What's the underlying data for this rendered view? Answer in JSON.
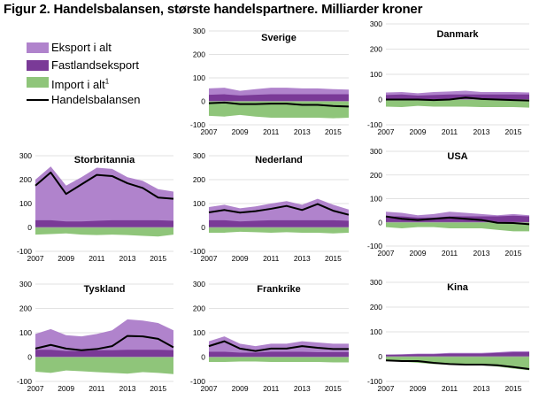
{
  "title": "Figur 2. Handelsbalansen, største handelspartnere. Milliarder kroner",
  "legend": [
    {
      "label": "Eksport i alt",
      "color": "#b083cc",
      "kind": "area"
    },
    {
      "label": "Fastlandseksport",
      "color": "#7a3a97",
      "kind": "area"
    },
    {
      "label": "Import i alt",
      "sup": "1",
      "color": "#8fc57a",
      "kind": "area"
    },
    {
      "label": "Handelsbalansen",
      "color": "#000000",
      "kind": "line"
    }
  ],
  "colors": {
    "export": "#b083cc",
    "mainland": "#7a3a97",
    "import": "#8fc57a",
    "balance": "#000000"
  },
  "chart_data": [
    {
      "type": "area",
      "title": "Sverige",
      "x": [
        2007,
        2008,
        2009,
        2010,
        2011,
        2012,
        2013,
        2014,
        2015,
        2016
      ],
      "series": [
        {
          "name": "Eksport i alt",
          "values": [
            55,
            58,
            45,
            52,
            58,
            58,
            55,
            55,
            52,
            50
          ]
        },
        {
          "name": "Fastlandseksport",
          "values": [
            28,
            30,
            25,
            28,
            30,
            30,
            30,
            30,
            30,
            30
          ]
        },
        {
          "name": "Import i alt",
          "values": [
            -62,
            -65,
            -58,
            -65,
            -70,
            -70,
            -70,
            -70,
            -72,
            -70
          ]
        },
        {
          "name": "Handelsbalansen",
          "values": [
            -8,
            -5,
            -12,
            -12,
            -10,
            -10,
            -15,
            -15,
            -20,
            -22
          ]
        }
      ],
      "xticks": [
        "2007",
        "2009",
        "2011",
        "2013",
        "2015"
      ],
      "ylim": [
        -100,
        300
      ],
      "yticks": [
        -100,
        0,
        100,
        200,
        300
      ]
    },
    {
      "type": "area",
      "title": "Danmark",
      "x": [
        2007,
        2008,
        2009,
        2010,
        2011,
        2012,
        2013,
        2014,
        2015,
        2016
      ],
      "series": [
        {
          "name": "Eksport i alt",
          "values": [
            28,
            30,
            25,
            30,
            32,
            35,
            30,
            30,
            30,
            28
          ]
        },
        {
          "name": "Fastlandseksport",
          "values": [
            18,
            20,
            16,
            18,
            20,
            20,
            20,
            20,
            20,
            20
          ]
        },
        {
          "name": "Import i alt",
          "values": [
            -28,
            -30,
            -25,
            -28,
            -28,
            -28,
            -30,
            -30,
            -30,
            -32
          ]
        },
        {
          "name": "Handelsbalansen",
          "values": [
            0,
            0,
            0,
            -2,
            0,
            8,
            2,
            0,
            -2,
            -4
          ]
        }
      ],
      "xticks": [
        "2007",
        "2009",
        "2011",
        "2013",
        "2015"
      ],
      "ylim": [
        -100,
        300
      ],
      "yticks": [
        -100,
        0,
        100,
        200,
        300
      ]
    },
    {
      "type": "area",
      "title": "Storbritannia",
      "x": [
        2007,
        2008,
        2009,
        2010,
        2011,
        2012,
        2013,
        2014,
        2015,
        2016
      ],
      "series": [
        {
          "name": "Eksport i alt",
          "values": [
            200,
            255,
            175,
            210,
            250,
            245,
            210,
            195,
            160,
            150
          ]
        },
        {
          "name": "Fastlandseksport",
          "values": [
            30,
            30,
            25,
            25,
            28,
            30,
            30,
            30,
            30,
            28
          ]
        },
        {
          "name": "Import i alt",
          "values": [
            -30,
            -28,
            -25,
            -30,
            -32,
            -30,
            -32,
            -35,
            -38,
            -30
          ]
        },
        {
          "name": "Handelsbalansen",
          "values": [
            175,
            230,
            140,
            180,
            220,
            215,
            185,
            165,
            125,
            120
          ]
        }
      ],
      "xticks": [
        "2007",
        "2009",
        "2011",
        "2013",
        "2015"
      ],
      "ylim": [
        -100,
        300
      ],
      "yticks": [
        -100,
        0,
        100,
        200,
        300
      ]
    },
    {
      "type": "area",
      "title": "Nederland",
      "x": [
        2007,
        2008,
        2009,
        2010,
        2011,
        2012,
        2013,
        2014,
        2015,
        2016
      ],
      "series": [
        {
          "name": "Eksport i alt",
          "values": [
            85,
            95,
            80,
            88,
            100,
            110,
            95,
            120,
            95,
            75
          ]
        },
        {
          "name": "Fastlandseksport",
          "values": [
            30,
            30,
            25,
            28,
            30,
            30,
            30,
            30,
            30,
            28
          ]
        },
        {
          "name": "Import i alt",
          "values": [
            -22,
            -22,
            -18,
            -20,
            -22,
            -20,
            -22,
            -22,
            -25,
            -22
          ]
        },
        {
          "name": "Handelsbalansen",
          "values": [
            63,
            73,
            62,
            68,
            78,
            90,
            73,
            98,
            70,
            53
          ]
        }
      ],
      "xticks": [
        "2007",
        "2009",
        "2011",
        "2013",
        "2015"
      ],
      "ylim": [
        -100,
        300
      ],
      "yticks": [
        -100,
        0,
        100,
        200,
        300
      ]
    },
    {
      "type": "area",
      "title": "USA",
      "x": [
        2007,
        2008,
        2009,
        2010,
        2011,
        2012,
        2013,
        2014,
        2015,
        2016
      ],
      "series": [
        {
          "name": "Eksport i alt",
          "values": [
            45,
            40,
            30,
            35,
            45,
            40,
            35,
            30,
            35,
            30
          ]
        },
        {
          "name": "Fastlandseksport",
          "values": [
            25,
            25,
            20,
            20,
            25,
            25,
            25,
            25,
            28,
            25
          ]
        },
        {
          "name": "Import i alt",
          "values": [
            -20,
            -25,
            -20,
            -20,
            -25,
            -25,
            -25,
            -32,
            -38,
            -38
          ]
        },
        {
          "name": "Handelsbalansen",
          "values": [
            25,
            15,
            10,
            15,
            20,
            15,
            10,
            -2,
            -3,
            -8
          ]
        }
      ],
      "xticks": [
        "2007",
        "2009",
        "2011",
        "2013",
        "2015"
      ],
      "ylim": [
        -100,
        300
      ],
      "yticks": [
        -100,
        0,
        100,
        200,
        300
      ]
    },
    {
      "type": "area",
      "title": "Tyskland",
      "x": [
        2007,
        2008,
        2009,
        2010,
        2011,
        2012,
        2013,
        2014,
        2015,
        2016
      ],
      "series": [
        {
          "name": "Eksport i alt",
          "values": [
            95,
            115,
            90,
            85,
            95,
            110,
            155,
            150,
            140,
            110
          ]
        },
        {
          "name": "Fastlandseksport",
          "values": [
            30,
            30,
            25,
            25,
            28,
            28,
            30,
            30,
            30,
            28
          ]
        },
        {
          "name": "Import i alt",
          "values": [
            -60,
            -65,
            -55,
            -58,
            -62,
            -65,
            -68,
            -62,
            -65,
            -70
          ]
        },
        {
          "name": "Handelsbalansen",
          "values": [
            35,
            50,
            35,
            28,
            33,
            45,
            87,
            85,
            75,
            40
          ]
        }
      ],
      "xticks": [
        "2007",
        "2009",
        "2011",
        "2013",
        "2015"
      ],
      "ylim": [
        -100,
        300
      ],
      "yticks": [
        -100,
        0,
        100,
        200,
        300
      ]
    },
    {
      "type": "area",
      "title": "Frankrike",
      "x": [
        2007,
        2008,
        2009,
        2010,
        2011,
        2012,
        2013,
        2014,
        2015,
        2016
      ],
      "series": [
        {
          "name": "Eksport i alt",
          "values": [
            65,
            85,
            55,
            45,
            55,
            55,
            65,
            60,
            55,
            55
          ]
        },
        {
          "name": "Fastlandseksport",
          "values": [
            22,
            22,
            18,
            18,
            22,
            22,
            22,
            20,
            20,
            20
          ]
        },
        {
          "name": "Import i alt",
          "values": [
            -20,
            -20,
            -18,
            -18,
            -20,
            -20,
            -20,
            -20,
            -22,
            -22
          ]
        },
        {
          "name": "Handelsbalansen",
          "values": [
            45,
            65,
            35,
            25,
            35,
            35,
            45,
            38,
            33,
            33
          ]
        }
      ],
      "xticks": [
        "2007",
        "2009",
        "2011",
        "2013",
        "2015"
      ],
      "ylim": [
        -100,
        300
      ],
      "yticks": [
        -100,
        0,
        100,
        200,
        300
      ]
    },
    {
      "type": "area",
      "title": "Kina",
      "x": [
        2007,
        2008,
        2009,
        2010,
        2011,
        2012,
        2013,
        2014,
        2015,
        2016
      ],
      "series": [
        {
          "name": "Eksport i alt",
          "values": [
            8,
            10,
            12,
            12,
            15,
            15,
            15,
            18,
            22,
            22
          ]
        },
        {
          "name": "Fastlandseksport",
          "values": [
            8,
            8,
            10,
            10,
            12,
            12,
            12,
            15,
            18,
            18
          ]
        },
        {
          "name": "Import i alt",
          "values": [
            -18,
            -20,
            -25,
            -30,
            -32,
            -32,
            -35,
            -40,
            -48,
            -55
          ]
        },
        {
          "name": "Handelsbalansen",
          "values": [
            -15,
            -18,
            -18,
            -25,
            -30,
            -32,
            -32,
            -35,
            -42,
            -50
          ]
        }
      ],
      "xticks": [
        "2007",
        "2009",
        "2011",
        "2013",
        "2015"
      ],
      "ylim": [
        -100,
        300
      ],
      "yticks": [
        -100,
        0,
        100,
        200,
        300
      ]
    }
  ]
}
